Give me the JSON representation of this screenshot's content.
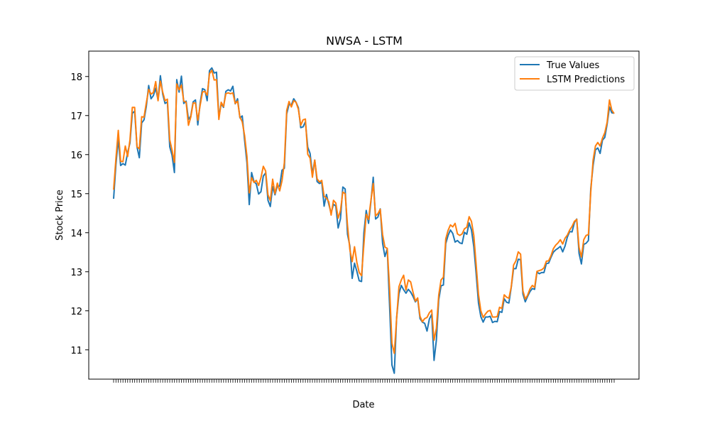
{
  "chart_data": {
    "type": "line",
    "title": "NWSA - LSTM",
    "xlabel": "Date",
    "ylabel": "Stock Price",
    "ylim": [
      10.25,
      18.65
    ],
    "y_ticks": [
      11,
      12,
      13,
      14,
      15,
      16,
      17,
      18
    ],
    "grid": false,
    "legend_position": "top-right",
    "series": [
      {
        "name": "True Values",
        "color": "#1f77b4",
        "values": [
          14.87,
          15.75,
          16.4,
          15.72,
          15.77,
          15.73,
          16.05,
          16.3,
          17.06,
          17.11,
          16.2,
          15.92,
          16.81,
          16.89,
          17.24,
          17.77,
          17.43,
          17.51,
          17.7,
          17.4,
          18.02,
          17.55,
          17.31,
          17.35,
          16.2,
          15.98,
          15.54,
          17.92,
          17.6,
          18.01,
          17.31,
          17.37,
          16.9,
          16.99,
          17.35,
          17.4,
          16.76,
          17.32,
          17.69,
          17.66,
          17.38,
          18.15,
          18.22,
          18.09,
          18.11,
          16.96,
          17.3,
          17.21,
          17.62,
          17.66,
          17.63,
          17.75,
          17.3,
          17.43,
          16.94,
          16.99,
          16.37,
          15.79,
          14.72,
          15.54,
          15.31,
          15.25,
          14.99,
          15.05,
          15.45,
          15.53,
          14.83,
          14.67,
          15.18,
          14.97,
          15.2,
          15.19,
          15.6,
          15.65,
          17.04,
          17.29,
          17.27,
          17.43,
          17.34,
          17.2,
          16.69,
          16.71,
          16.84,
          16.19,
          16.03,
          15.5,
          15.86,
          15.31,
          15.26,
          15.29,
          14.68,
          14.98,
          14.73,
          14.5,
          14.73,
          14.68,
          14.12,
          14.36,
          15.17,
          15.12,
          13.96,
          13.66,
          12.83,
          13.22,
          13.01,
          12.77,
          12.75,
          13.99,
          14.57,
          14.24,
          14.79,
          15.42,
          14.35,
          14.4,
          14.61,
          13.73,
          13.39,
          13.59,
          12.11,
          10.61,
          10.4,
          11.82,
          12.44,
          12.65,
          12.54,
          12.45,
          12.55,
          12.48,
          12.37,
          12.23,
          12.31,
          11.8,
          11.71,
          11.68,
          11.48,
          11.79,
          11.91,
          10.73,
          11.25,
          12.28,
          12.64,
          12.66,
          13.72,
          13.93,
          14.07,
          13.98,
          13.76,
          13.8,
          13.74,
          13.72,
          14.01,
          13.96,
          14.25,
          14.07,
          13.64,
          12.95,
          12.2,
          11.85,
          11.71,
          11.84,
          11.84,
          11.86,
          11.7,
          11.73,
          11.72,
          11.98,
          11.96,
          12.31,
          12.22,
          12.2,
          12.6,
          13.08,
          13.08,
          13.32,
          13.31,
          12.43,
          12.23,
          12.37,
          12.49,
          12.57,
          12.55,
          12.99,
          12.95,
          12.98,
          12.98,
          13.21,
          13.22,
          13.37,
          13.5,
          13.56,
          13.6,
          13.65,
          13.51,
          13.66,
          13.89,
          14.03,
          14.02,
          14.26,
          14.35,
          13.47,
          13.2,
          13.7,
          13.73,
          13.8,
          15.13,
          15.72,
          16.12,
          16.17,
          16.03,
          16.37,
          16.44,
          16.78,
          17.22,
          17.07,
          17.06
        ]
      },
      {
        "name": "LSTM Predictions",
        "color": "#ff7f0e",
        "values": [
          15.1,
          15.9,
          16.62,
          15.83,
          15.82,
          16.22,
          15.95,
          16.38,
          17.21,
          17.21,
          16.2,
          16.15,
          16.97,
          16.96,
          17.33,
          17.67,
          17.55,
          17.59,
          17.87,
          17.38,
          17.88,
          17.6,
          17.38,
          17.42,
          16.38,
          16.11,
          15.8,
          17.81,
          17.66,
          17.78,
          17.37,
          17.34,
          16.75,
          16.96,
          17.32,
          17.32,
          16.88,
          17.26,
          17.6,
          17.62,
          17.52,
          18.07,
          18.16,
          17.91,
          17.92,
          16.9,
          17.34,
          17.23,
          17.56,
          17.58,
          17.56,
          17.58,
          17.31,
          17.37,
          16.96,
          16.84,
          16.49,
          15.96,
          15.02,
          15.41,
          15.29,
          15.34,
          15.21,
          15.41,
          15.7,
          15.58,
          14.97,
          14.82,
          15.37,
          15.0,
          15.27,
          15.07,
          15.33,
          15.79,
          17.13,
          17.36,
          17.22,
          17.38,
          17.34,
          17.16,
          16.75,
          16.89,
          16.91,
          16.01,
          15.91,
          15.42,
          15.86,
          15.38,
          15.3,
          15.34,
          14.93,
          14.89,
          14.79,
          14.45,
          14.83,
          14.76,
          14.37,
          14.57,
          15.04,
          15.0,
          14.19,
          13.57,
          13.26,
          13.64,
          13.24,
          12.98,
          12.9,
          13.7,
          14.47,
          14.34,
          14.82,
          15.26,
          14.43,
          14.49,
          14.6,
          13.95,
          13.63,
          13.6,
          12.56,
          11.17,
          10.91,
          11.8,
          12.62,
          12.79,
          12.91,
          12.53,
          12.79,
          12.74,
          12.48,
          12.25,
          12.33,
          11.86,
          11.72,
          11.8,
          11.83,
          11.95,
          12.02,
          11.25,
          11.55,
          12.4,
          12.79,
          12.86,
          13.84,
          14.06,
          14.2,
          14.15,
          14.24,
          13.97,
          13.93,
          13.97,
          14.1,
          14.14,
          14.41,
          14.29,
          13.93,
          13.18,
          12.42,
          12.0,
          11.83,
          11.92,
          11.99,
          12.01,
          11.84,
          11.84,
          11.85,
          12.09,
          12.06,
          12.41,
          12.35,
          12.32,
          12.61,
          13.17,
          13.28,
          13.51,
          13.45,
          12.51,
          12.3,
          12.4,
          12.56,
          12.65,
          12.6,
          13.01,
          13.03,
          13.05,
          13.1,
          13.27,
          13.28,
          13.41,
          13.59,
          13.68,
          13.74,
          13.82,
          13.71,
          13.86,
          13.94,
          14.07,
          14.16,
          14.29,
          14.34,
          13.62,
          13.38,
          13.82,
          13.93,
          13.95,
          15.04,
          15.86,
          16.22,
          16.31,
          16.22,
          16.42,
          16.56,
          16.83,
          17.4,
          17.14,
          17.05
        ]
      }
    ]
  }
}
